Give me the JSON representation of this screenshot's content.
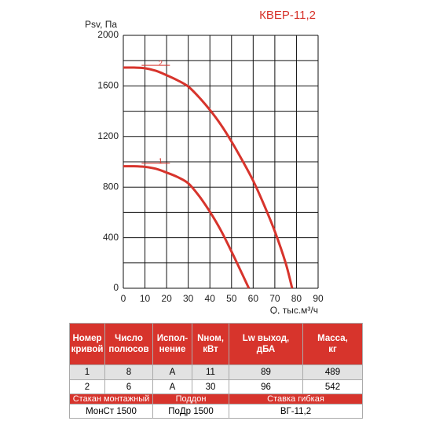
{
  "chart_data": {
    "type": "line",
    "title": "КВЕР-11,2",
    "y_label": "Psv, Па",
    "x_label": "Q, тыс.м³/ч",
    "xlim": [
      0,
      90
    ],
    "xticks": [
      0,
      10,
      20,
      30,
      40,
      50,
      60,
      70,
      80,
      90
    ],
    "ylim": [
      0,
      2000
    ],
    "yticks": [
      0,
      400,
      800,
      1200,
      1600,
      2000
    ],
    "y_minor_ticks": [
      200,
      600,
      1000,
      1400,
      1800
    ],
    "grid": true,
    "series": [
      {
        "name": "1",
        "color": "#d7342c",
        "x": [
          0,
          5,
          10,
          15,
          20,
          25,
          30,
          35,
          40,
          45,
          50,
          55,
          58
        ],
        "values": [
          965,
          965,
          960,
          945,
          915,
          880,
          830,
          730,
          605,
          460,
          290,
          110,
          0
        ]
      },
      {
        "name": "2",
        "color": "#d7342c",
        "x": [
          0,
          5,
          10,
          15,
          20,
          25,
          30,
          35,
          40,
          45,
          50,
          55,
          60,
          65,
          70,
          75,
          78
        ],
        "values": [
          1745,
          1745,
          1740,
          1720,
          1685,
          1645,
          1595,
          1510,
          1410,
          1295,
          1160,
          1010,
          850,
          660,
          450,
          200,
          0
        ]
      }
    ]
  },
  "table": {
    "header": [
      "Номер\nкривой",
      "Число\nполюсов",
      "Испол-\nнение",
      "Nном,\nкВт",
      "Lw выход,\nдБА",
      "Масса,\nкг"
    ],
    "rows": [
      [
        1,
        8,
        "A",
        11,
        89,
        489
      ],
      [
        2,
        6,
        "A",
        30,
        96,
        542
      ]
    ],
    "accessories_header": [
      "Стакан монтажный",
      "Поддон",
      "Ставка гибкая"
    ],
    "accessories": [
      "МонСт 1500",
      "ПоДр 1500",
      "ВГ-11,2"
    ]
  }
}
